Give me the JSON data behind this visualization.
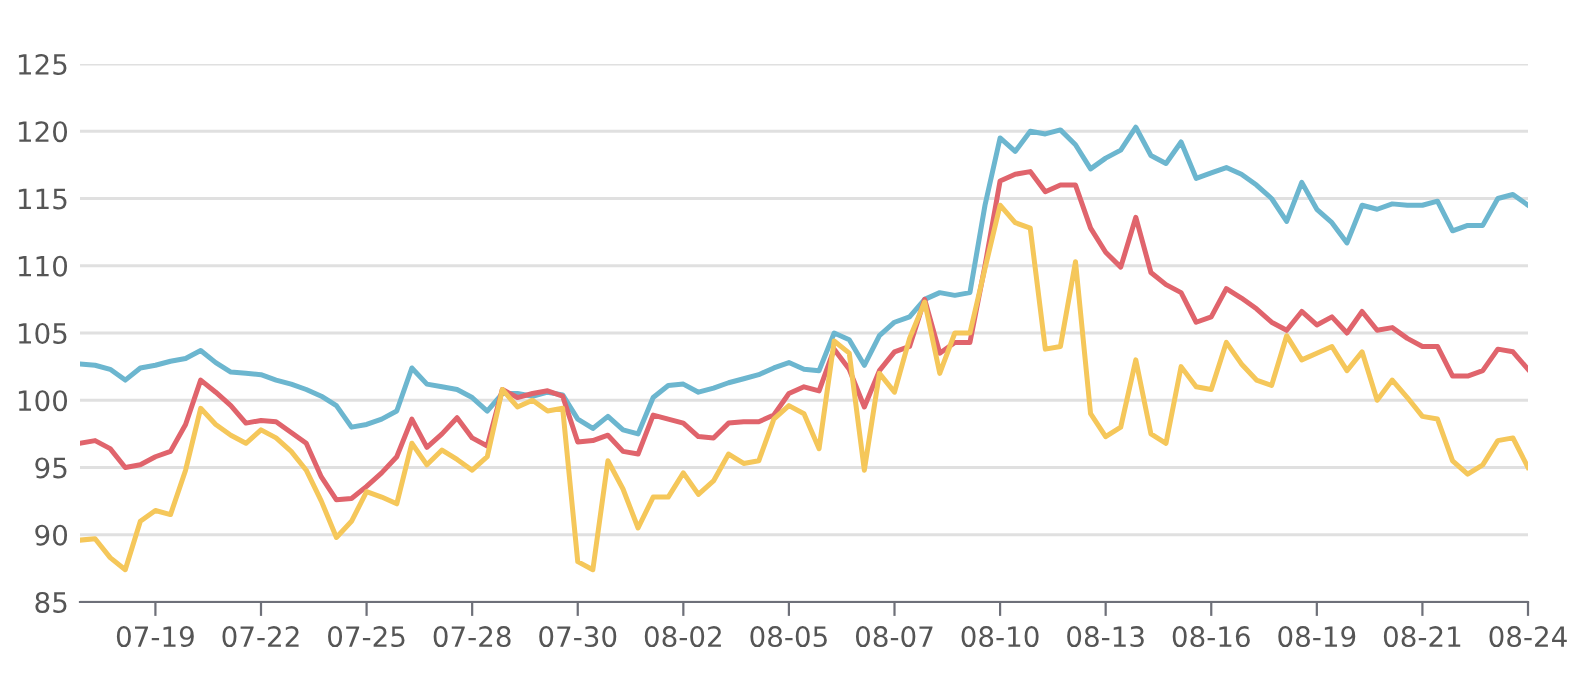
{
  "chart_data": {
    "type": "line",
    "categories": [
      null,
      null,
      null,
      null,
      null,
      "07-19",
      null,
      null,
      null,
      null,
      null,
      null,
      "07-22",
      null,
      null,
      null,
      null,
      null,
      null,
      "07-25",
      null,
      null,
      null,
      null,
      null,
      null,
      "07-28",
      null,
      null,
      null,
      null,
      null,
      null,
      "07-30",
      null,
      null,
      null,
      null,
      null,
      null,
      "08-02",
      null,
      null,
      null,
      null,
      null,
      null,
      "08-05",
      null,
      null,
      null,
      null,
      null,
      null,
      "08-07",
      null,
      null,
      null,
      null,
      null,
      null,
      "08-10",
      null,
      null,
      null,
      null,
      null,
      null,
      "08-13",
      null,
      null,
      null,
      null,
      null,
      null,
      "08-16",
      null,
      null,
      null,
      null,
      null,
      null,
      "08-19",
      null,
      null,
      null,
      null,
      null,
      null,
      "08-21",
      null,
      null,
      null,
      null,
      null,
      null,
      "08-24"
    ],
    "ylim": [
      85,
      125
    ],
    "yticks": [
      85,
      90,
      95,
      100,
      105,
      110,
      115,
      120,
      125
    ],
    "grid": "y",
    "marker": "none",
    "line_style": "solid",
    "series": [
      {
        "color": "#6cb6cf",
        "values": [
          102.7,
          102.6,
          102.3,
          101.5,
          102.4,
          102.6,
          102.9,
          103.1,
          103.7,
          102.8,
          102.1,
          102.0,
          101.9,
          101.5,
          101.2,
          100.8,
          100.3,
          99.6,
          98.0,
          98.2,
          98.6,
          99.2,
          102.4,
          101.2,
          101.0,
          100.8,
          100.2,
          99.2,
          100.5,
          100.5,
          100.3,
          100.6,
          100.4,
          98.6,
          97.9,
          98.8,
          97.8,
          97.5,
          100.2,
          101.1,
          101.2,
          100.6,
          100.9,
          101.3,
          101.6,
          101.9,
          102.4,
          102.8,
          102.3,
          102.2,
          105.0,
          104.5,
          102.6,
          104.8,
          105.8,
          106.2,
          107.5,
          108.0,
          107.8,
          108.0,
          114.5,
          119.5,
          118.5,
          120.0,
          119.8,
          120.1,
          119.0,
          117.2,
          118.0,
          118.6,
          120.3,
          118.2,
          117.6,
          119.2,
          116.5,
          116.9,
          117.3,
          116.8,
          116.0,
          115.0,
          113.3,
          116.2,
          114.2,
          113.2,
          111.7,
          114.5,
          114.2,
          114.6,
          114.5,
          114.5,
          114.8,
          112.6,
          113.0,
          113.0,
          115.0,
          115.3,
          114.5
        ]
      },
      {
        "color": "#e0646c",
        "values": [
          96.8,
          97.0,
          96.4,
          95.0,
          95.2,
          95.8,
          96.2,
          98.2,
          101.5,
          100.6,
          99.6,
          98.3,
          98.5,
          98.4,
          97.6,
          96.8,
          94.3,
          92.6,
          92.7,
          93.6,
          94.6,
          95.8,
          98.6,
          96.5,
          97.5,
          98.7,
          97.2,
          96.6,
          100.8,
          100.2,
          100.5,
          100.7,
          100.3,
          96.9,
          97.0,
          97.4,
          96.2,
          96.0,
          98.9,
          98.6,
          98.3,
          97.3,
          97.2,
          98.3,
          98.4,
          98.4,
          98.9,
          100.5,
          101.0,
          100.7,
          103.8,
          102.3,
          99.5,
          102.2,
          103.6,
          104.0,
          107.5,
          103.5,
          104.3,
          104.3,
          110.0,
          116.3,
          116.8,
          117.0,
          115.5,
          116.0,
          116.0,
          112.8,
          111.0,
          109.9,
          113.6,
          109.5,
          108.6,
          108.0,
          105.8,
          106.2,
          108.3,
          107.6,
          106.8,
          105.8,
          105.2,
          106.6,
          105.6,
          106.2,
          105.0,
          106.6,
          105.2,
          105.4,
          104.6,
          104.0,
          104.0,
          101.8,
          101.8,
          102.2,
          103.8,
          103.6,
          102.3
        ]
      },
      {
        "color": "#f5c75a",
        "values": [
          89.6,
          89.7,
          88.3,
          87.4,
          91.0,
          91.8,
          91.5,
          94.8,
          99.4,
          98.2,
          97.4,
          96.8,
          97.8,
          97.2,
          96.2,
          94.8,
          92.5,
          89.8,
          91.0,
          93.2,
          92.8,
          92.3,
          96.8,
          95.2,
          96.3,
          95.6,
          94.8,
          95.8,
          100.8,
          99.5,
          100.0,
          99.2,
          99.4,
          88.0,
          87.4,
          95.5,
          93.4,
          90.5,
          92.8,
          92.8,
          94.6,
          93.0,
          94.0,
          96.0,
          95.3,
          95.5,
          98.6,
          99.6,
          99.0,
          96.4,
          104.4,
          103.5,
          94.8,
          102.0,
          100.6,
          104.6,
          107.3,
          102.0,
          105.0,
          105.0,
          109.8,
          114.5,
          113.2,
          112.8,
          103.8,
          104.0,
          110.3,
          99.0,
          97.3,
          98.0,
          103.0,
          97.5,
          96.8,
          102.5,
          101.0,
          100.8,
          104.3,
          102.7,
          101.5,
          101.1,
          104.8,
          103.0,
          103.5,
          104.0,
          102.2,
          103.6,
          100.0,
          101.5,
          100.2,
          98.8,
          98.6,
          95.5,
          94.5,
          95.2,
          97.0,
          97.2,
          95.0
        ]
      }
    ]
  }
}
